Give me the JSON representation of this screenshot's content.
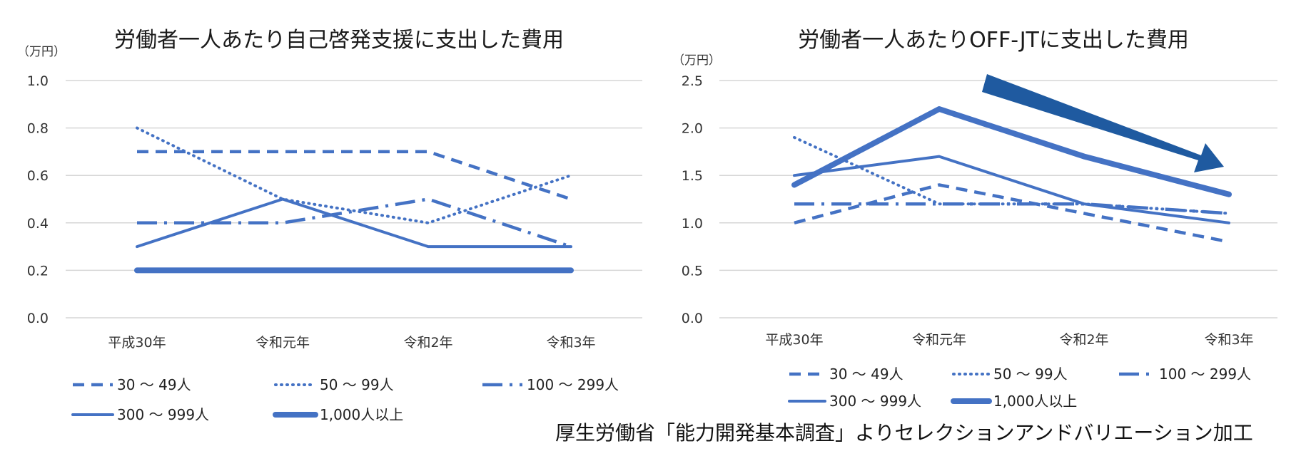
{
  "chart_data": [
    {
      "type": "line",
      "title": "労働者一人あたり自己啓発支援に支出した費用",
      "ylabel": "（万円）",
      "ylim": [
        0,
        1.0
      ],
      "yticks": [
        "0.0",
        "0.2",
        "0.4",
        "0.6",
        "0.8",
        "1.0"
      ],
      "categories": [
        "平成30年",
        "令和元年",
        "令和2年",
        "令和3年"
      ],
      "legend_position": "bottom",
      "series": [
        {
          "name": "30 ～  49人",
          "values": [
            0.7,
            0.7,
            0.7,
            0.5
          ],
          "style": "dash"
        },
        {
          "name": "50 ～  99人",
          "values": [
            0.8,
            0.5,
            0.4,
            0.6
          ],
          "style": "dot"
        },
        {
          "name": "100 ～ 299人",
          "values": [
            0.4,
            0.4,
            0.5,
            0.3
          ],
          "style": "dashdot"
        },
        {
          "name": "300 ～ 999人",
          "values": [
            0.3,
            0.5,
            0.3,
            0.3
          ],
          "style": "solid"
        },
        {
          "name": "1,000人以上",
          "values": [
            0.2,
            0.2,
            0.2,
            0.2
          ],
          "style": "thick"
        }
      ]
    },
    {
      "type": "line",
      "title": "労働者一人あたりOFF-JTに支出した費用",
      "ylabel": "（万円）",
      "ylim": [
        0,
        2.5
      ],
      "yticks": [
        "0.0",
        "0.5",
        "1.0",
        "1.5",
        "2.0",
        "2.5"
      ],
      "categories": [
        "平成30年",
        "令和元年",
        "令和2年",
        "令和3年"
      ],
      "legend_position": "bottom",
      "annotation": "decreasing trend arrow",
      "series": [
        {
          "name": "30 ～  49人",
          "values": [
            1.0,
            1.4,
            1.1,
            0.8
          ],
          "style": "dash"
        },
        {
          "name": "50 ～  99人",
          "values": [
            1.9,
            1.2,
            1.2,
            1.1
          ],
          "style": "dot"
        },
        {
          "name": "100 ～ 299人",
          "values": [
            1.2,
            1.2,
            1.2,
            1.1
          ],
          "style": "dashdot"
        },
        {
          "name": "300 ～ 999人",
          "values": [
            1.5,
            1.7,
            1.2,
            1.0
          ],
          "style": "solid"
        },
        {
          "name": "1,000人以上",
          "values": [
            1.4,
            2.2,
            1.7,
            1.3
          ],
          "style": "thick"
        }
      ]
    }
  ],
  "source": "厚生労働省「能力開発基本調査」よりセレクションアンドバリエーション加工",
  "colors": {
    "line": "#4472c4",
    "arrow": "#1f5aa0"
  }
}
